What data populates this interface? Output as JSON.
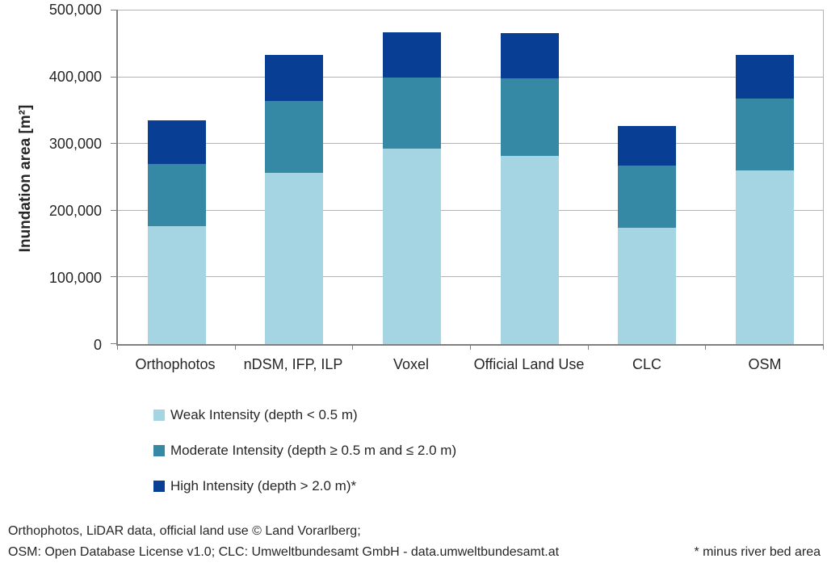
{
  "chart_data": {
    "type": "bar",
    "stacked": true,
    "title": "",
    "xlabel": "",
    "ylabel": "Inundation area [m²]",
    "ylim": [
      0,
      500000
    ],
    "yticks": [
      0,
      100000,
      200000,
      300000,
      400000,
      500000
    ],
    "ytick_labels": [
      "0",
      "100,000",
      "200,000",
      "300,000",
      "400,000",
      "500,000"
    ],
    "grid": true,
    "legend_position": "bottom-left",
    "categories": [
      "Orthophotos",
      "nDSM, IFP, ILP",
      "Voxel",
      "Official Land Use",
      "CLC",
      "OSM"
    ],
    "series": [
      {
        "name": "Weak Intensity (depth < 0.5 m)",
        "color": "#a5d5e2",
        "values": [
          177000,
          257000,
          293000,
          282000,
          174000,
          260000
        ]
      },
      {
        "name": "Moderate Intensity (depth ≥ 0.5 m and ≤ 2.0 m)",
        "color": "#3589a4",
        "values": [
          93000,
          107000,
          107000,
          116000,
          93000,
          108000
        ]
      },
      {
        "name": "High Intensity (depth > 2.0 m)*",
        "color": "#083e94",
        "values": [
          65000,
          69000,
          67000,
          68000,
          60000,
          65000
        ]
      }
    ],
    "stack_totals": [
      335000,
      433000,
      467000,
      466000,
      327000,
      433000
    ]
  },
  "footer": {
    "line1": "Orthophotos, LiDAR data, official land use © Land Vorarlberg;",
    "line2": "OSM: Open Database License v1.0; CLC: Umweltbundesamt GmbH - data.umweltbundesamt.at",
    "note": "* minus river bed area"
  },
  "colors": {
    "axis": "#808080",
    "gridline": "#b3b3b3",
    "text": "#262626",
    "background": "#ffffff"
  }
}
